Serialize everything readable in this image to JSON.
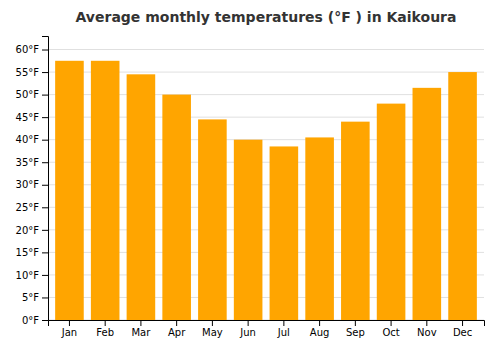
{
  "chart_data": {
    "type": "bar",
    "title": "Average monthly temperatures (°F ) in Kaikoura",
    "categories": [
      "Jan",
      "Feb",
      "Mar",
      "Apr",
      "May",
      "Jun",
      "Jul",
      "Aug",
      "Sep",
      "Oct",
      "Nov",
      "Dec"
    ],
    "values": [
      57.5,
      57.5,
      54.5,
      50.0,
      44.5,
      40.0,
      38.5,
      40.5,
      44.0,
      48.0,
      51.5,
      55.0
    ],
    "color": "#FFA500",
    "ylim": [
      0,
      63
    ],
    "yticks": [
      {
        "value": 0,
        "label": "0°F"
      },
      {
        "value": 5,
        "label": "5°F"
      },
      {
        "value": 10,
        "label": "10°F"
      },
      {
        "value": 15,
        "label": "15°F"
      },
      {
        "value": 20,
        "label": "20°F"
      },
      {
        "value": 25,
        "label": "25°F"
      },
      {
        "value": 30,
        "label": "30°F"
      },
      {
        "value": 35,
        "label": "35°F"
      },
      {
        "value": 40,
        "label": "40°F"
      },
      {
        "value": 45,
        "label": "45°F"
      },
      {
        "value": 50,
        "label": "50°F"
      },
      {
        "value": 55,
        "label": "55°F"
      },
      {
        "value": 60,
        "label": "60°F"
      }
    ],
    "grid": true
  }
}
